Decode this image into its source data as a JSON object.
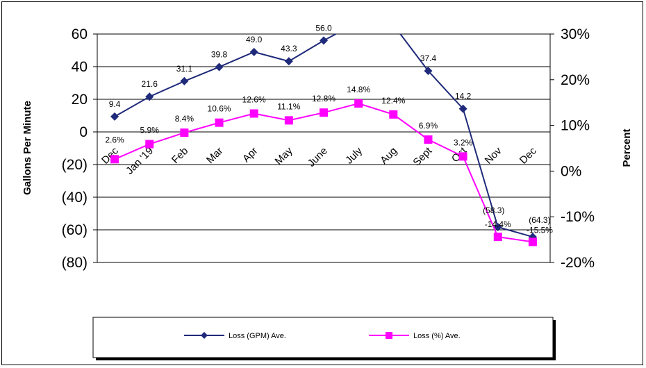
{
  "chart_data": {
    "type": "line",
    "categories": [
      "Dec",
      "Jan '19",
      "Feb",
      "Mar",
      "Apr",
      "May",
      "June",
      "July",
      "Aug",
      "Sept",
      "Oct",
      "Nov",
      "Dec"
    ],
    "ylabel": "Gallons Per Minute",
    "y2label": "Percent",
    "ylim": [
      -80,
      60
    ],
    "y2lim": [
      -0.2,
      0.3
    ],
    "yticks": [
      "60",
      "40",
      "20",
      "0",
      "(20)",
      "(40)",
      "(60)",
      "(80)"
    ],
    "y2ticks": [
      "30%",
      "20%",
      "10%",
      "0%",
      "-10%",
      "-20%"
    ],
    "grid": true,
    "legend_position": "bottom",
    "series": [
      {
        "name": "Loss (GPM) Ave.",
        "axis": "left",
        "color": "#1F2A7A",
        "marker": "diamond",
        "values": [
          9.4,
          21.6,
          31.1,
          39.8,
          49.0,
          43.3,
          56.0,
          null,
          null,
          37.4,
          14.2,
          -58.3,
          -64.3
        ],
        "labels": [
          "9.4",
          "21.6",
          "31.1",
          "39.8",
          "49.0",
          "43.3",
          "56.0",
          "",
          "",
          "37.4",
          "14.2",
          "(58.3)",
          "(64.3)"
        ]
      },
      {
        "name": "Loss (%) Ave.",
        "axis": "right",
        "color": "#FF00FF",
        "marker": "square",
        "values": [
          0.026,
          0.059,
          0.084,
          0.106,
          0.126,
          0.111,
          0.128,
          0.148,
          0.124,
          0.069,
          0.032,
          -0.144,
          -0.155
        ],
        "labels": [
          "2.6%",
          "5.9%",
          "8.4%",
          "10.6%",
          "12.6%",
          "11.1%",
          "12.8%",
          "14.8%",
          "12.4%",
          "6.9%",
          "3.2%",
          "-14.4%",
          "-15.5%"
        ]
      }
    ]
  }
}
